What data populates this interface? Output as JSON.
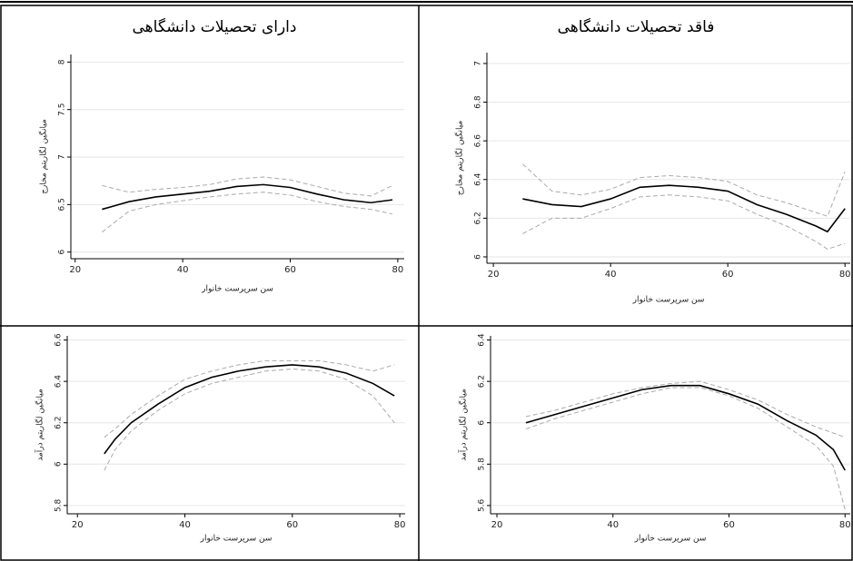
{
  "column_headers": [
    "دارای تحصیلات دانشگاهی",
    "فاقد تحصیلات دانشگاهی"
  ],
  "chart_data": [
    {
      "type": "line",
      "y_label": "میانگین لگاریتم مخارج",
      "x_label": "سن سرپرست خانوار",
      "x": [
        25,
        30,
        35,
        40,
        45,
        50,
        55,
        60,
        65,
        70,
        75,
        79
      ],
      "series": [
        {
          "color": "#000000",
          "style": "solid",
          "values": [
            6.45,
            6.53,
            6.58,
            6.61,
            6.64,
            6.69,
            6.71,
            6.68,
            6.61,
            6.55,
            6.52,
            6.55
          ]
        },
        {
          "color": "#aaaaaa",
          "style": "dashed",
          "values": [
            6.7,
            6.63,
            6.66,
            6.68,
            6.71,
            6.77,
            6.79,
            6.76,
            6.69,
            6.62,
            6.59,
            6.7
          ]
        },
        {
          "color": "#aaaaaa",
          "style": "dashed",
          "values": [
            6.21,
            6.43,
            6.5,
            6.54,
            6.58,
            6.61,
            6.63,
            6.6,
            6.53,
            6.48,
            6.45,
            6.4
          ]
        }
      ],
      "xlim": [
        19.2,
        81.2
      ],
      "xticks": [
        20,
        40,
        60,
        80
      ],
      "ylim": [
        5.93,
        8.08
      ],
      "yticks": [
        6,
        6.5,
        7,
        7.5,
        8
      ],
      "grid": true
    },
    {
      "type": "line",
      "y_label": "میانگین لگاریتم مخارج",
      "x_label": "سن سرپرست خانوار",
      "x": [
        25,
        30,
        35,
        40,
        45,
        50,
        55,
        60,
        65,
        70,
        75,
        77,
        80
      ],
      "series": [
        {
          "color": "#000000",
          "style": "solid",
          "values": [
            6.3,
            6.27,
            6.26,
            6.3,
            6.36,
            6.37,
            6.36,
            6.34,
            6.27,
            6.22,
            6.16,
            6.13,
            6.25
          ]
        },
        {
          "color": "#aaaaaa",
          "style": "dashed",
          "values": [
            6.48,
            6.34,
            6.32,
            6.35,
            6.41,
            6.42,
            6.41,
            6.39,
            6.32,
            6.28,
            6.23,
            6.21,
            6.44
          ]
        },
        {
          "color": "#aaaaaa",
          "style": "dashed",
          "values": [
            6.12,
            6.2,
            6.2,
            6.25,
            6.31,
            6.32,
            6.31,
            6.29,
            6.22,
            6.16,
            6.08,
            6.04,
            6.07
          ]
        }
      ],
      "xlim": [
        18.9,
        80.9
      ],
      "xticks": [
        20,
        40,
        60,
        80
      ],
      "ylim": [
        5.967,
        7.056
      ],
      "yticks": [
        6,
        6.2,
        6.4,
        6.6,
        6.8,
        7
      ],
      "grid": true
    },
    {
      "type": "line",
      "y_label": "میانگین لگاریتم درآمد",
      "x_label": "سن سرپرست خانوار",
      "x": [
        25,
        27,
        30,
        35,
        40,
        45,
        50,
        55,
        60,
        65,
        70,
        75,
        79
      ],
      "series": [
        {
          "color": "#000000",
          "style": "solid",
          "values": [
            6.05,
            6.12,
            6.2,
            6.29,
            6.37,
            6.42,
            6.45,
            6.47,
            6.48,
            6.47,
            6.44,
            6.39,
            6.33
          ]
        },
        {
          "color": "#aaaaaa",
          "style": "dashed",
          "values": [
            6.13,
            6.17,
            6.24,
            6.33,
            6.41,
            6.45,
            6.48,
            6.5,
            6.5,
            6.5,
            6.48,
            6.45,
            6.48
          ]
        },
        {
          "color": "#aaaaaa",
          "style": "dashed",
          "values": [
            5.97,
            6.07,
            6.16,
            6.26,
            6.34,
            6.39,
            6.42,
            6.45,
            6.46,
            6.45,
            6.41,
            6.33,
            6.2
          ]
        }
      ],
      "xlim": [
        18.1,
        81.0
      ],
      "xticks": [
        20,
        40,
        60,
        80
      ],
      "ylim": [
        5.76,
        6.62
      ],
      "yticks": [
        5.8,
        6,
        6.2,
        6.4,
        6.6
      ],
      "grid": true
    },
    {
      "type": "line",
      "y_label": "میانگین لگاریتم درآمد",
      "x_label": "سن سرپرست خانوار",
      "x": [
        25,
        30,
        35,
        40,
        45,
        50,
        55,
        60,
        65,
        70,
        75,
        78,
        80
      ],
      "series": [
        {
          "color": "#000000",
          "style": "solid",
          "values": [
            6.0,
            6.04,
            6.08,
            6.12,
            6.16,
            6.18,
            6.18,
            6.14,
            6.09,
            6.01,
            5.94,
            5.87,
            5.77
          ]
        },
        {
          "color": "#aaaaaa",
          "style": "dashed",
          "values": [
            6.03,
            6.06,
            6.1,
            6.14,
            6.17,
            6.19,
            6.2,
            6.16,
            6.11,
            6.04,
            5.98,
            5.95,
            5.93
          ]
        },
        {
          "color": "#aaaaaa",
          "style": "dashed",
          "values": [
            5.97,
            6.02,
            6.06,
            6.1,
            6.14,
            6.17,
            6.17,
            6.13,
            6.07,
            5.98,
            5.89,
            5.79,
            5.58
          ]
        }
      ],
      "xlim": [
        18.9,
        80.9
      ],
      "xticks": [
        20,
        40,
        60,
        80
      ],
      "ylim": [
        5.56,
        6.42
      ],
      "yticks": [
        5.6,
        5.8,
        6,
        6.2,
        6.4
      ],
      "grid": true
    }
  ]
}
